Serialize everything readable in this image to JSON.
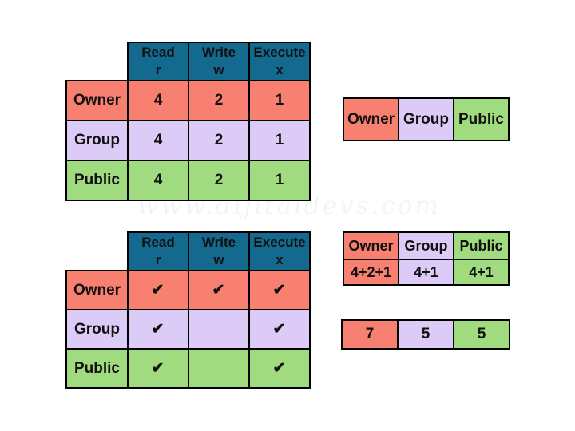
{
  "watermark": "www.dijitaldevs.com",
  "colors": {
    "header_bg": "#136A8E",
    "owner_bg": "#F88070",
    "group_bg": "#DCCBF6",
    "public_bg": "#A0DB80",
    "border": "#000000",
    "header_text": "#FFFFFF",
    "cell_text": "#101010"
  },
  "perm_columns": [
    {
      "label": "Read",
      "sub": "r"
    },
    {
      "label": "Write",
      "sub": "w"
    },
    {
      "label": "Execute",
      "sub": "x"
    }
  ],
  "numeric_table": {
    "rows": [
      {
        "label": "Owner",
        "values": [
          "4",
          "2",
          "1"
        ]
      },
      {
        "label": "Group",
        "values": [
          "4",
          "2",
          "1"
        ]
      },
      {
        "label": "Public",
        "values": [
          "4",
          "2",
          "1"
        ]
      }
    ]
  },
  "check_table": {
    "rows": [
      {
        "label": "Owner",
        "values": [
          "✔",
          "✔",
          "✔"
        ]
      },
      {
        "label": "Group",
        "values": [
          "✔",
          "",
          "✔"
        ]
      },
      {
        "label": "Public",
        "values": [
          "✔",
          "",
          "✔"
        ]
      }
    ]
  },
  "entity_row": {
    "cells": [
      "Owner",
      "Group",
      "Public"
    ]
  },
  "sum_table": {
    "headers": [
      "Owner",
      "Group",
      "Public"
    ],
    "values": [
      "4+2+1",
      "4+1",
      "4+1"
    ]
  },
  "result_row": {
    "cells": [
      "7",
      "5",
      "5"
    ]
  }
}
